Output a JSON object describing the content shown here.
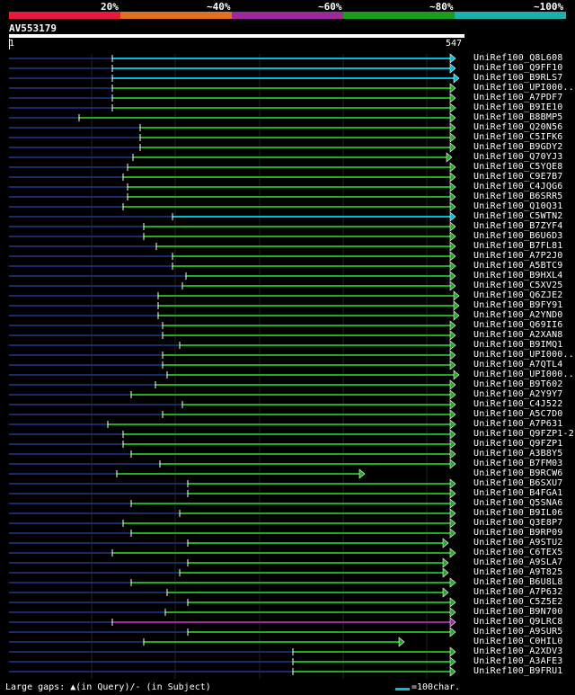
{
  "scale": {
    "labels": [
      "20%",
      "~40%",
      "~60%",
      "~80%",
      "~100%"
    ],
    "colors": [
      "#e8193c",
      "#e0701e",
      "#9c2a9c",
      "#1a9e1a",
      "#1ab0b0"
    ]
  },
  "query": {
    "name": "AV553179",
    "start": "1",
    "end": "547"
  },
  "hits": [
    {
      "label": "UniRef100_Q8L608",
      "color": "#00bcd4",
      "start": 125,
      "end": 507
    },
    {
      "label": "UniRef100_Q9FF10",
      "color": "#00bcd4",
      "start": 125,
      "end": 507
    },
    {
      "label": "UniRef100_B9RLS7",
      "color": "#00bcd4",
      "start": 125,
      "end": 511
    },
    {
      "label": "UniRef100_UPI000..",
      "color": "#22aa22",
      "start": 125,
      "end": 507
    },
    {
      "label": "UniRef100_A7PDF7",
      "color": "#22aa22",
      "start": 125,
      "end": 507
    },
    {
      "label": "UniRef100_B9IE10",
      "color": "#22aa22",
      "start": 125,
      "end": 507
    },
    {
      "label": "UniRef100_B8BMP5",
      "color": "#22aa22",
      "start": 88,
      "end": 507
    },
    {
      "label": "UniRef100_Q20N56",
      "color": "#22aa22",
      "start": 156,
      "end": 507
    },
    {
      "label": "UniRef100_C5IFK6",
      "color": "#22aa22",
      "start": 156,
      "end": 507
    },
    {
      "label": "UniRef100_B9GDY2",
      "color": "#22aa22",
      "start": 156,
      "end": 507
    },
    {
      "label": "UniRef100_Q70YJ3",
      "color": "#22aa22",
      "start": 148,
      "end": 503
    },
    {
      "label": "UniRef100_C5YQE8",
      "color": "#22aa22",
      "start": 142,
      "end": 507
    },
    {
      "label": "UniRef100_C9E7B7",
      "color": "#22aa22",
      "start": 137,
      "end": 507
    },
    {
      "label": "UniRef100_C4JQG6",
      "color": "#22aa22",
      "start": 142,
      "end": 507
    },
    {
      "label": "UniRef100_B6SRR5",
      "color": "#22aa22",
      "start": 142,
      "end": 507
    },
    {
      "label": "UniRef100_Q10Q31",
      "color": "#22aa22",
      "start": 137,
      "end": 507
    },
    {
      "label": "UniRef100_C5WTN2",
      "color": "#00bcd4",
      "start": 192,
      "end": 507
    },
    {
      "label": "UniRef100_B7ZYF4",
      "color": "#22aa22",
      "start": 160,
      "end": 507
    },
    {
      "label": "UniRef100_B6U6D3",
      "color": "#22aa22",
      "start": 160,
      "end": 507
    },
    {
      "label": "UniRef100_B7FL81",
      "color": "#22aa22",
      "start": 174,
      "end": 507
    },
    {
      "label": "UniRef100_A7P2J0",
      "color": "#22aa22",
      "start": 192,
      "end": 507
    },
    {
      "label": "UniRef100_A5BTC9",
      "color": "#22aa22",
      "start": 192,
      "end": 507
    },
    {
      "label": "UniRef100_B9HXL4",
      "color": "#22aa22",
      "start": 207,
      "end": 507
    },
    {
      "label": "UniRef100_C5XV25",
      "color": "#22aa22",
      "start": 203,
      "end": 507
    },
    {
      "label": "UniRef100_Q6ZJE2",
      "color": "#22aa22",
      "start": 176,
      "end": 511
    },
    {
      "label": "UniRef100_B9FY91",
      "color": "#22aa22",
      "start": 176,
      "end": 511
    },
    {
      "label": "UniRef100_A2YND0",
      "color": "#22aa22",
      "start": 176,
      "end": 511
    },
    {
      "label": "UniRef100_Q69II6",
      "color": "#22aa22",
      "start": 181,
      "end": 507
    },
    {
      "label": "UniRef100_A2XAN8",
      "color": "#22aa22",
      "start": 181,
      "end": 507
    },
    {
      "label": "UniRef100_B9IMQ1",
      "color": "#22aa22",
      "start": 200,
      "end": 507
    },
    {
      "label": "UniRef100_UPI000..",
      "color": "#22aa22",
      "start": 181,
      "end": 507
    },
    {
      "label": "UniRef100_A7QTL4",
      "color": "#22aa22",
      "start": 181,
      "end": 507
    },
    {
      "label": "UniRef100_UPI000..",
      "color": "#22aa22",
      "start": 186,
      "end": 511
    },
    {
      "label": "UniRef100_B9T602",
      "color": "#22aa22",
      "start": 173,
      "end": 507
    },
    {
      "label": "UniRef100_A2Y9Y7",
      "color": "#22aa22",
      "start": 146,
      "end": 507
    },
    {
      "label": "UniRef100_C4J522",
      "color": "#22aa22",
      "start": 203,
      "end": 507
    },
    {
      "label": "UniRef100_A5C7D0",
      "color": "#22aa22",
      "start": 181,
      "end": 507
    },
    {
      "label": "UniRef100_A7P631",
      "color": "#22aa22",
      "start": 120,
      "end": 507
    },
    {
      "label": "UniRef100_Q9FZP1-2",
      "color": "#22aa22",
      "start": 137,
      "end": 507
    },
    {
      "label": "UniRef100_Q9FZP1",
      "color": "#22aa22",
      "start": 137,
      "end": 507
    },
    {
      "label": "UniRef100_A3B8Y5",
      "color": "#22aa22",
      "start": 146,
      "end": 507
    },
    {
      "label": "UniRef100_B7FM03",
      "color": "#22aa22",
      "start": 178,
      "end": 507
    },
    {
      "label": "UniRef100_B9RCW6",
      "color": "#22aa22",
      "start": 130,
      "end": 406
    },
    {
      "label": "UniRef100_B6SXU7",
      "color": "#22aa22",
      "start": 209,
      "end": 507
    },
    {
      "label": "UniRef100_B4FGA1",
      "color": "#22aa22",
      "start": 209,
      "end": 507
    },
    {
      "label": "UniRef100_Q5SNA6",
      "color": "#22aa22",
      "start": 146,
      "end": 507
    },
    {
      "label": "UniRef100_B9IL06",
      "color": "#22aa22",
      "start": 200,
      "end": 507
    },
    {
      "label": "UniRef100_Q3E8P7",
      "color": "#22aa22",
      "start": 137,
      "end": 507
    },
    {
      "label": "UniRef100_B9RP09",
      "color": "#22aa22",
      "start": 146,
      "end": 507
    },
    {
      "label": "UniRef100_A9STU2",
      "color": "#22aa22",
      "start": 209,
      "end": 499
    },
    {
      "label": "UniRef100_C6TEX5",
      "color": "#22aa22",
      "start": 125,
      "end": 507
    },
    {
      "label": "UniRef100_A9SLA7",
      "color": "#22aa22",
      "start": 209,
      "end": 499
    },
    {
      "label": "UniRef100_A9T825",
      "color": "#22aa22",
      "start": 200,
      "end": 499
    },
    {
      "label": "UniRef100_B6U8L8",
      "color": "#22aa22",
      "start": 146,
      "end": 507
    },
    {
      "label": "UniRef100_A7P632",
      "color": "#22aa22",
      "start": 186,
      "end": 499
    },
    {
      "label": "UniRef100_C5Z5E2",
      "color": "#22aa22",
      "start": 209,
      "end": 507
    },
    {
      "label": "UniRef100_B9N700",
      "color": "#22aa22",
      "start": 184,
      "end": 507
    },
    {
      "label": "UniRef100_Q9LRC8",
      "color": "#9c2a9c",
      "start": 125,
      "end": 507
    },
    {
      "label": "UniRef100_A9SUR5",
      "color": "#22aa22",
      "start": 209,
      "end": 507
    },
    {
      "label": "UniRef100_C0HIL0",
      "color": "#22aa22",
      "start": 160,
      "end": 450
    },
    {
      "label": "UniRef100_A2XDV3",
      "color": "#22aa22",
      "start": 326,
      "end": 507
    },
    {
      "label": "UniRef100_A3AFE3",
      "color": "#22aa22",
      "start": 326,
      "end": 507
    },
    {
      "label": "UniRef100_B9FRU1",
      "color": "#22aa22",
      "start": 326,
      "end": 507
    }
  ],
  "footer": {
    "text": "Large gaps: ▲(in Query)/- (in Subject)",
    "legend": "=100char."
  }
}
